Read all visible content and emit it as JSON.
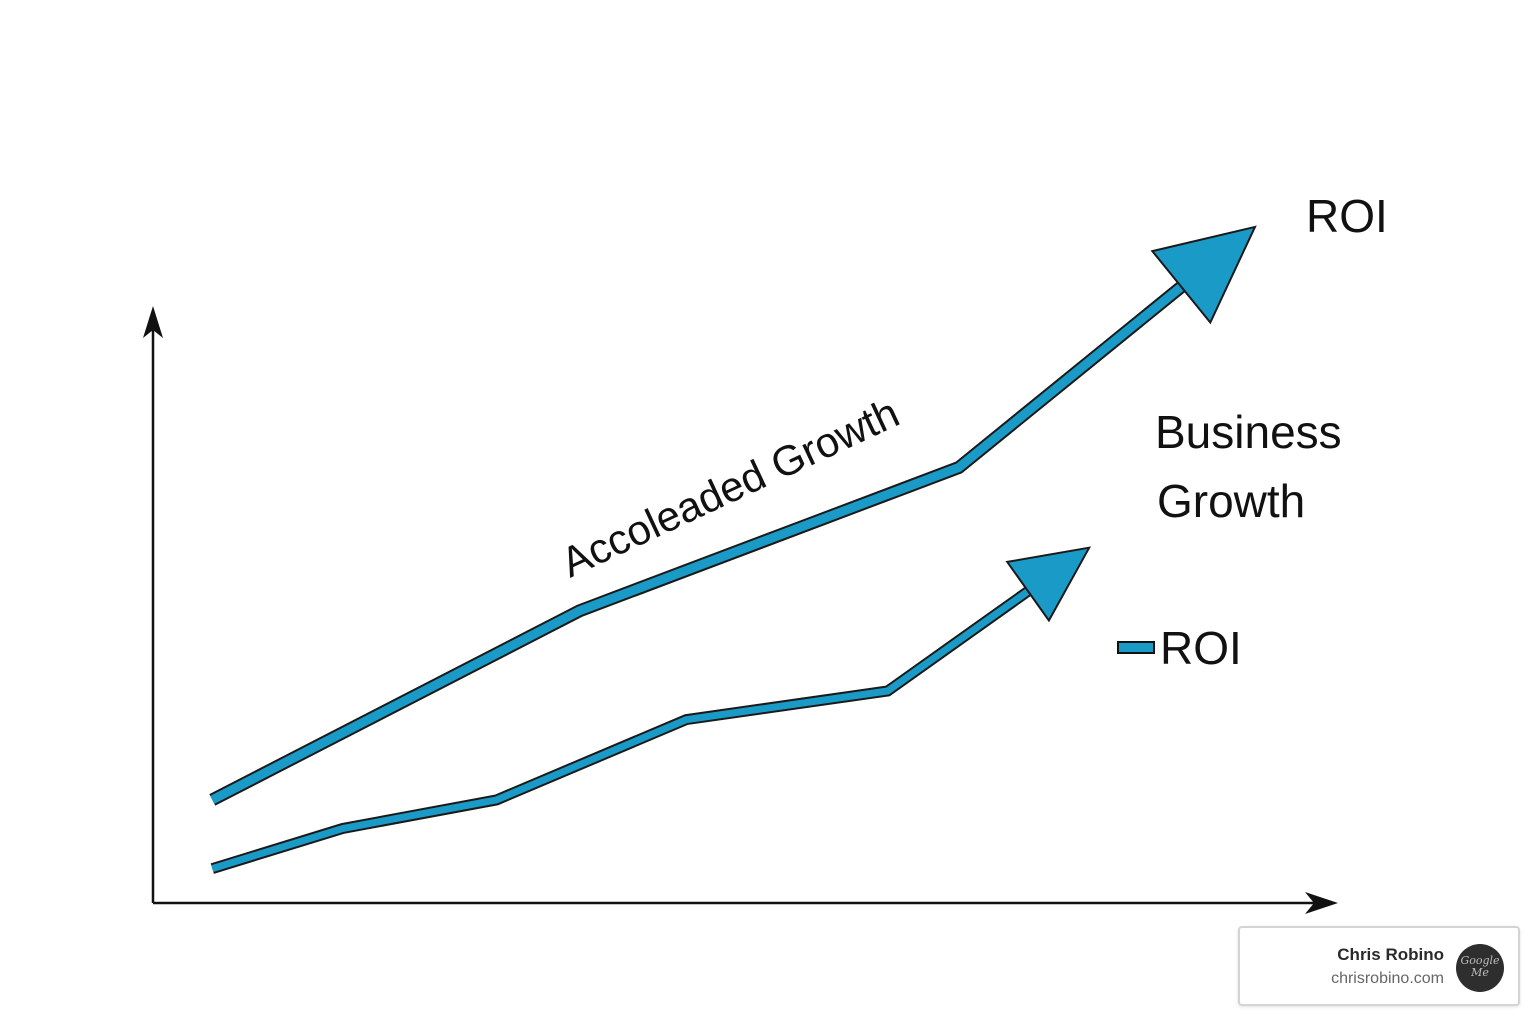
{
  "chart_data": {
    "type": "line",
    "title": "",
    "xlabel": "",
    "ylabel": "",
    "xlim": [
      0,
      10
    ],
    "ylim": [
      0,
      10
    ],
    "series": [
      {
        "name": "ROI",
        "color": "#1a9ac7",
        "x": [
          0.5,
          3.6,
          6.8,
          9.3
        ],
        "y": [
          1.8,
          5.1,
          7.6,
          11.8
        ]
      },
      {
        "name": "",
        "color": "#1a9ac7",
        "x": [
          0.5,
          1.6,
          2.9,
          4.5,
          6.2,
          7.9
        ],
        "y": [
          0.6,
          1.3,
          1.8,
          3.2,
          3.7,
          6.2
        ]
      }
    ],
    "annotations": [
      {
        "text": "Accoleaded Growth",
        "placement": "along upper line"
      },
      {
        "text": "ROI",
        "placement": "upper line arrow tip"
      },
      {
        "text": "Business",
        "placement": "above lower line arrow"
      },
      {
        "text": "Growth",
        "placement": "above lower line arrow"
      }
    ],
    "legend": {
      "placement": "right",
      "entries": [
        {
          "label": "ROI",
          "color": "#1a9ac7"
        }
      ]
    },
    "grid": false
  },
  "credit": {
    "name": "Chris Robino",
    "site": "chrisrobino.com",
    "badge_text": "Google Me",
    "badge_icon": "google-me-badge-icon"
  }
}
